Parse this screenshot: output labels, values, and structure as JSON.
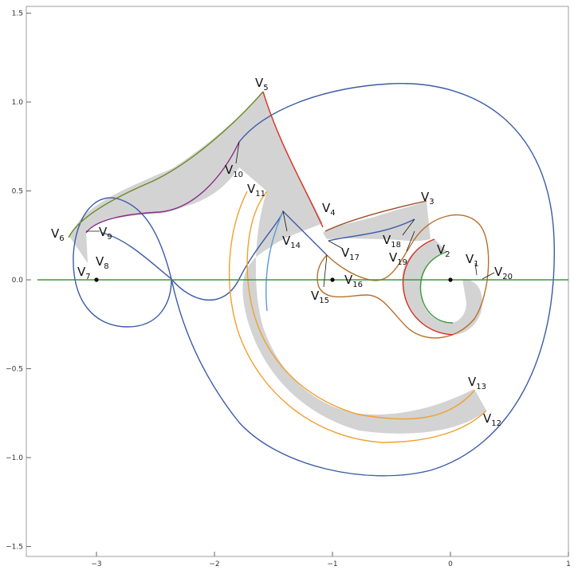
{
  "axes": {
    "x_ticks": [
      {
        "value": -3,
        "label": "−3"
      },
      {
        "value": -2,
        "label": "−2"
      },
      {
        "value": -1,
        "label": "−1"
      },
      {
        "value": 0,
        "label": "0"
      },
      {
        "value": 1,
        "label": "1"
      }
    ],
    "y_ticks": [
      {
        "value": 1.5,
        "label": "1.5"
      },
      {
        "value": 1.0,
        "label": "1.0"
      },
      {
        "value": 0.5,
        "label": "0.5"
      },
      {
        "value": 0.0,
        "label": "0.0"
      },
      {
        "value": -0.5,
        "label": "−0.5"
      },
      {
        "value": -1.0,
        "label": "−1.0"
      },
      {
        "value": -1.5,
        "label": "−1.5"
      }
    ]
  },
  "vertices": [
    {
      "main": "V",
      "sub": "1"
    },
    {
      "main": "V",
      "sub": "2"
    },
    {
      "main": "V",
      "sub": "3"
    },
    {
      "main": "V",
      "sub": "4"
    },
    {
      "main": "V",
      "sub": "5"
    },
    {
      "main": "V",
      "sub": "6"
    },
    {
      "main": "V",
      "sub": "7"
    },
    {
      "main": "V",
      "sub": "8"
    },
    {
      "main": "V",
      "sub": "9"
    },
    {
      "main": "V",
      "sub": "10"
    },
    {
      "main": "V",
      "sub": "11"
    },
    {
      "main": "V",
      "sub": "12"
    },
    {
      "main": "V",
      "sub": "13"
    },
    {
      "main": "V",
      "sub": "14"
    },
    {
      "main": "V",
      "sub": "15"
    },
    {
      "main": "V",
      "sub": "16"
    },
    {
      "main": "V",
      "sub": "17"
    },
    {
      "main": "V",
      "sub": "18"
    },
    {
      "main": "V",
      "sub": "19"
    },
    {
      "main": "V",
      "sub": "20"
    }
  ],
  "colors": {
    "blue_curve": "#3b5ba8",
    "green_axis": "#3a9a3a",
    "orange": "#f0a030",
    "red": "#d83020",
    "olive": "#6a8a20",
    "purple": "#8a2a8a",
    "brown": "#a0522d",
    "light_blue": "#5a9ad8",
    "gray_fill": "#d3d3d3"
  }
}
